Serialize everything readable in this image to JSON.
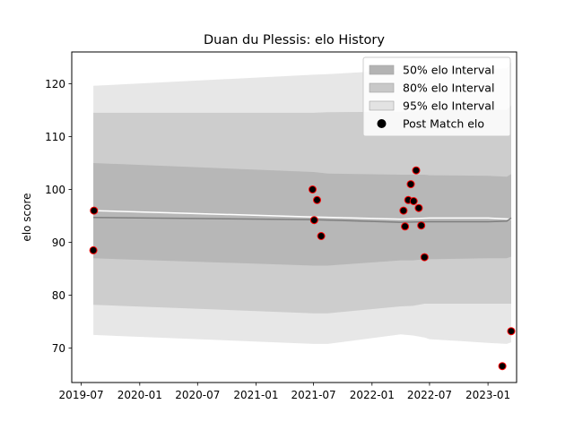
{
  "chart_data": {
    "type": "line",
    "title": "Duan du Plessis: elo History",
    "xlabel": "",
    "ylabel": "elo score",
    "xlim": [
      "2019-06-01",
      "2023-04-01"
    ],
    "ylim": [
      63.5,
      126
    ],
    "x_ticks": [
      "2019-07",
      "2020-01",
      "2020-07",
      "2021-01",
      "2021-07",
      "2022-01",
      "2022-07",
      "2023-01"
    ],
    "y_ticks": [
      70,
      80,
      90,
      100,
      110,
      120
    ],
    "grid": false,
    "legend_position": "top-right",
    "legend": [
      {
        "label": "50% elo Interval",
        "kind": "band",
        "color": "#b3b3b3"
      },
      {
        "label": "80% elo Interval",
        "kind": "band",
        "color": "#c8c8c8"
      },
      {
        "label": "95% elo Interval",
        "kind": "band",
        "color": "#e3e3e3"
      },
      {
        "label": "Post Match elo",
        "kind": "marker",
        "color": "#000000"
      }
    ],
    "bands": [
      {
        "name": "95% elo Interval",
        "color": "#e3e3e3",
        "x": [
          "2019-08-08",
          "2021-07-01",
          "2021-08-15",
          "2022-04-01",
          "2022-05-10",
          "2022-06-15",
          "2022-07-01",
          "2023-01-01",
          "2023-03-01",
          "2023-03-15"
        ],
        "upper": [
          119.6,
          121.7,
          121.8,
          122.6,
          122.6,
          122.7,
          122.7,
          122.8,
          122.9,
          124.0
        ],
        "lower": [
          72.5,
          70.8,
          70.8,
          72.6,
          72.4,
          72.0,
          71.7,
          71.0,
          70.8,
          71.1
        ]
      },
      {
        "name": "80% elo Interval",
        "color": "#c8c8c8",
        "x": [
          "2019-08-08",
          "2021-07-01",
          "2021-08-15",
          "2022-04-01",
          "2022-05-10",
          "2022-06-15",
          "2022-07-01",
          "2023-01-01",
          "2023-03-01",
          "2023-03-15"
        ],
        "upper": [
          114.5,
          114.5,
          114.6,
          114.7,
          114.8,
          115.0,
          115.0,
          115.0,
          115.1,
          115.8
        ],
        "lower": [
          78.2,
          76.6,
          76.6,
          77.9,
          78.0,
          78.4,
          78.4,
          78.4,
          78.4,
          78.4
        ]
      },
      {
        "name": "50% elo Interval",
        "color": "#b3b3b3",
        "x": [
          "2019-08-08",
          "2021-07-01",
          "2021-08-15",
          "2022-04-01",
          "2022-05-10",
          "2022-06-15",
          "2022-07-01",
          "2023-01-01",
          "2023-03-01",
          "2023-03-15"
        ],
        "upper": [
          105.0,
          103.3,
          103.0,
          102.8,
          102.8,
          102.8,
          102.7,
          102.6,
          102.4,
          102.9
        ],
        "lower": [
          87.0,
          85.6,
          85.6,
          86.6,
          86.6,
          86.8,
          86.8,
          87.0,
          87.0,
          87.3
        ]
      }
    ],
    "series": [
      {
        "name": "",
        "color": "#ffffff",
        "x": [
          "2019-08-08",
          "2021-07-01",
          "2022-04-01",
          "2022-07-01",
          "2023-01-01",
          "2023-03-15"
        ],
        "y": [
          96.0,
          94.8,
          94.4,
          94.6,
          94.6,
          94.4
        ]
      },
      {
        "name": "",
        "color": "#7f7f7f",
        "x": [
          "2019-08-08",
          "2021-07-01",
          "2022-04-01",
          "2022-07-01",
          "2023-01-01",
          "2023-03-01",
          "2023-03-15"
        ],
        "y": [
          94.7,
          94.3,
          93.8,
          93.9,
          93.9,
          94.0,
          94.6
        ]
      }
    ],
    "points": {
      "name": "Post Match elo",
      "marker_color": "#000000",
      "edge_color": "#ff0000",
      "x": [
        "2019-08-08",
        "2019-08-10",
        "2021-06-28",
        "2021-07-03",
        "2021-07-12",
        "2021-07-25",
        "2022-04-10",
        "2022-04-15",
        "2022-04-25",
        "2022-05-03",
        "2022-05-12",
        "2022-05-20",
        "2022-05-28",
        "2022-06-05",
        "2022-06-15",
        "2023-02-15",
        "2023-03-15"
      ],
      "y": [
        88.5,
        96.0,
        100.0,
        94.2,
        98.0,
        91.2,
        96.0,
        93.0,
        98.0,
        101.0,
        97.8,
        103.6,
        96.5,
        93.2,
        87.2,
        66.6,
        73.2
      ]
    }
  }
}
